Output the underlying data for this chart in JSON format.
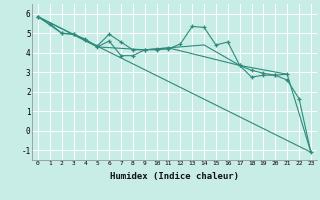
{
  "title": "",
  "xlabel": "Humidex (Indice chaleur)",
  "xlim": [
    -0.5,
    23.5
  ],
  "ylim": [
    -1.5,
    6.5
  ],
  "yticks": [
    -1,
    0,
    1,
    2,
    3,
    4,
    5,
    6
  ],
  "xticks": [
    0,
    1,
    2,
    3,
    4,
    5,
    6,
    7,
    8,
    9,
    10,
    11,
    12,
    13,
    14,
    15,
    16,
    17,
    18,
    19,
    20,
    21,
    22,
    23
  ],
  "background_color": "#c8ece6",
  "grid_color": "#ffffff",
  "line_color": "#2e8b7a",
  "series": [
    {
      "x": [
        0,
        1,
        2,
        3,
        4,
        5,
        6,
        7,
        8,
        9,
        10,
        11,
        12,
        13,
        14,
        15,
        16,
        17,
        18,
        19,
        20,
        21,
        22,
        23
      ],
      "y": [
        5.85,
        5.5,
        5.0,
        4.95,
        4.7,
        4.3,
        4.6,
        3.85,
        3.85,
        4.15,
        4.15,
        4.2,
        4.45,
        5.35,
        5.3,
        4.4,
        4.55,
        3.35,
        2.75,
        2.85,
        2.85,
        2.6,
        1.65,
        -1.1
      ],
      "marker": "+"
    },
    {
      "x": [
        0,
        2,
        3,
        4,
        5,
        6,
        7,
        8,
        9,
        10,
        11,
        17,
        18,
        19,
        20,
        21
      ],
      "y": [
        5.85,
        5.0,
        4.95,
        4.65,
        4.35,
        4.95,
        4.55,
        4.15,
        4.15,
        4.2,
        4.25,
        3.35,
        3.1,
        2.95,
        2.85,
        2.9
      ],
      "marker": "+"
    },
    {
      "x": [
        0,
        23
      ],
      "y": [
        5.85,
        -1.1
      ],
      "marker": null
    },
    {
      "x": [
        0,
        5,
        9,
        14,
        17,
        21,
        23
      ],
      "y": [
        5.85,
        4.3,
        4.15,
        4.4,
        3.35,
        2.9,
        -1.1
      ],
      "marker": null
    }
  ]
}
